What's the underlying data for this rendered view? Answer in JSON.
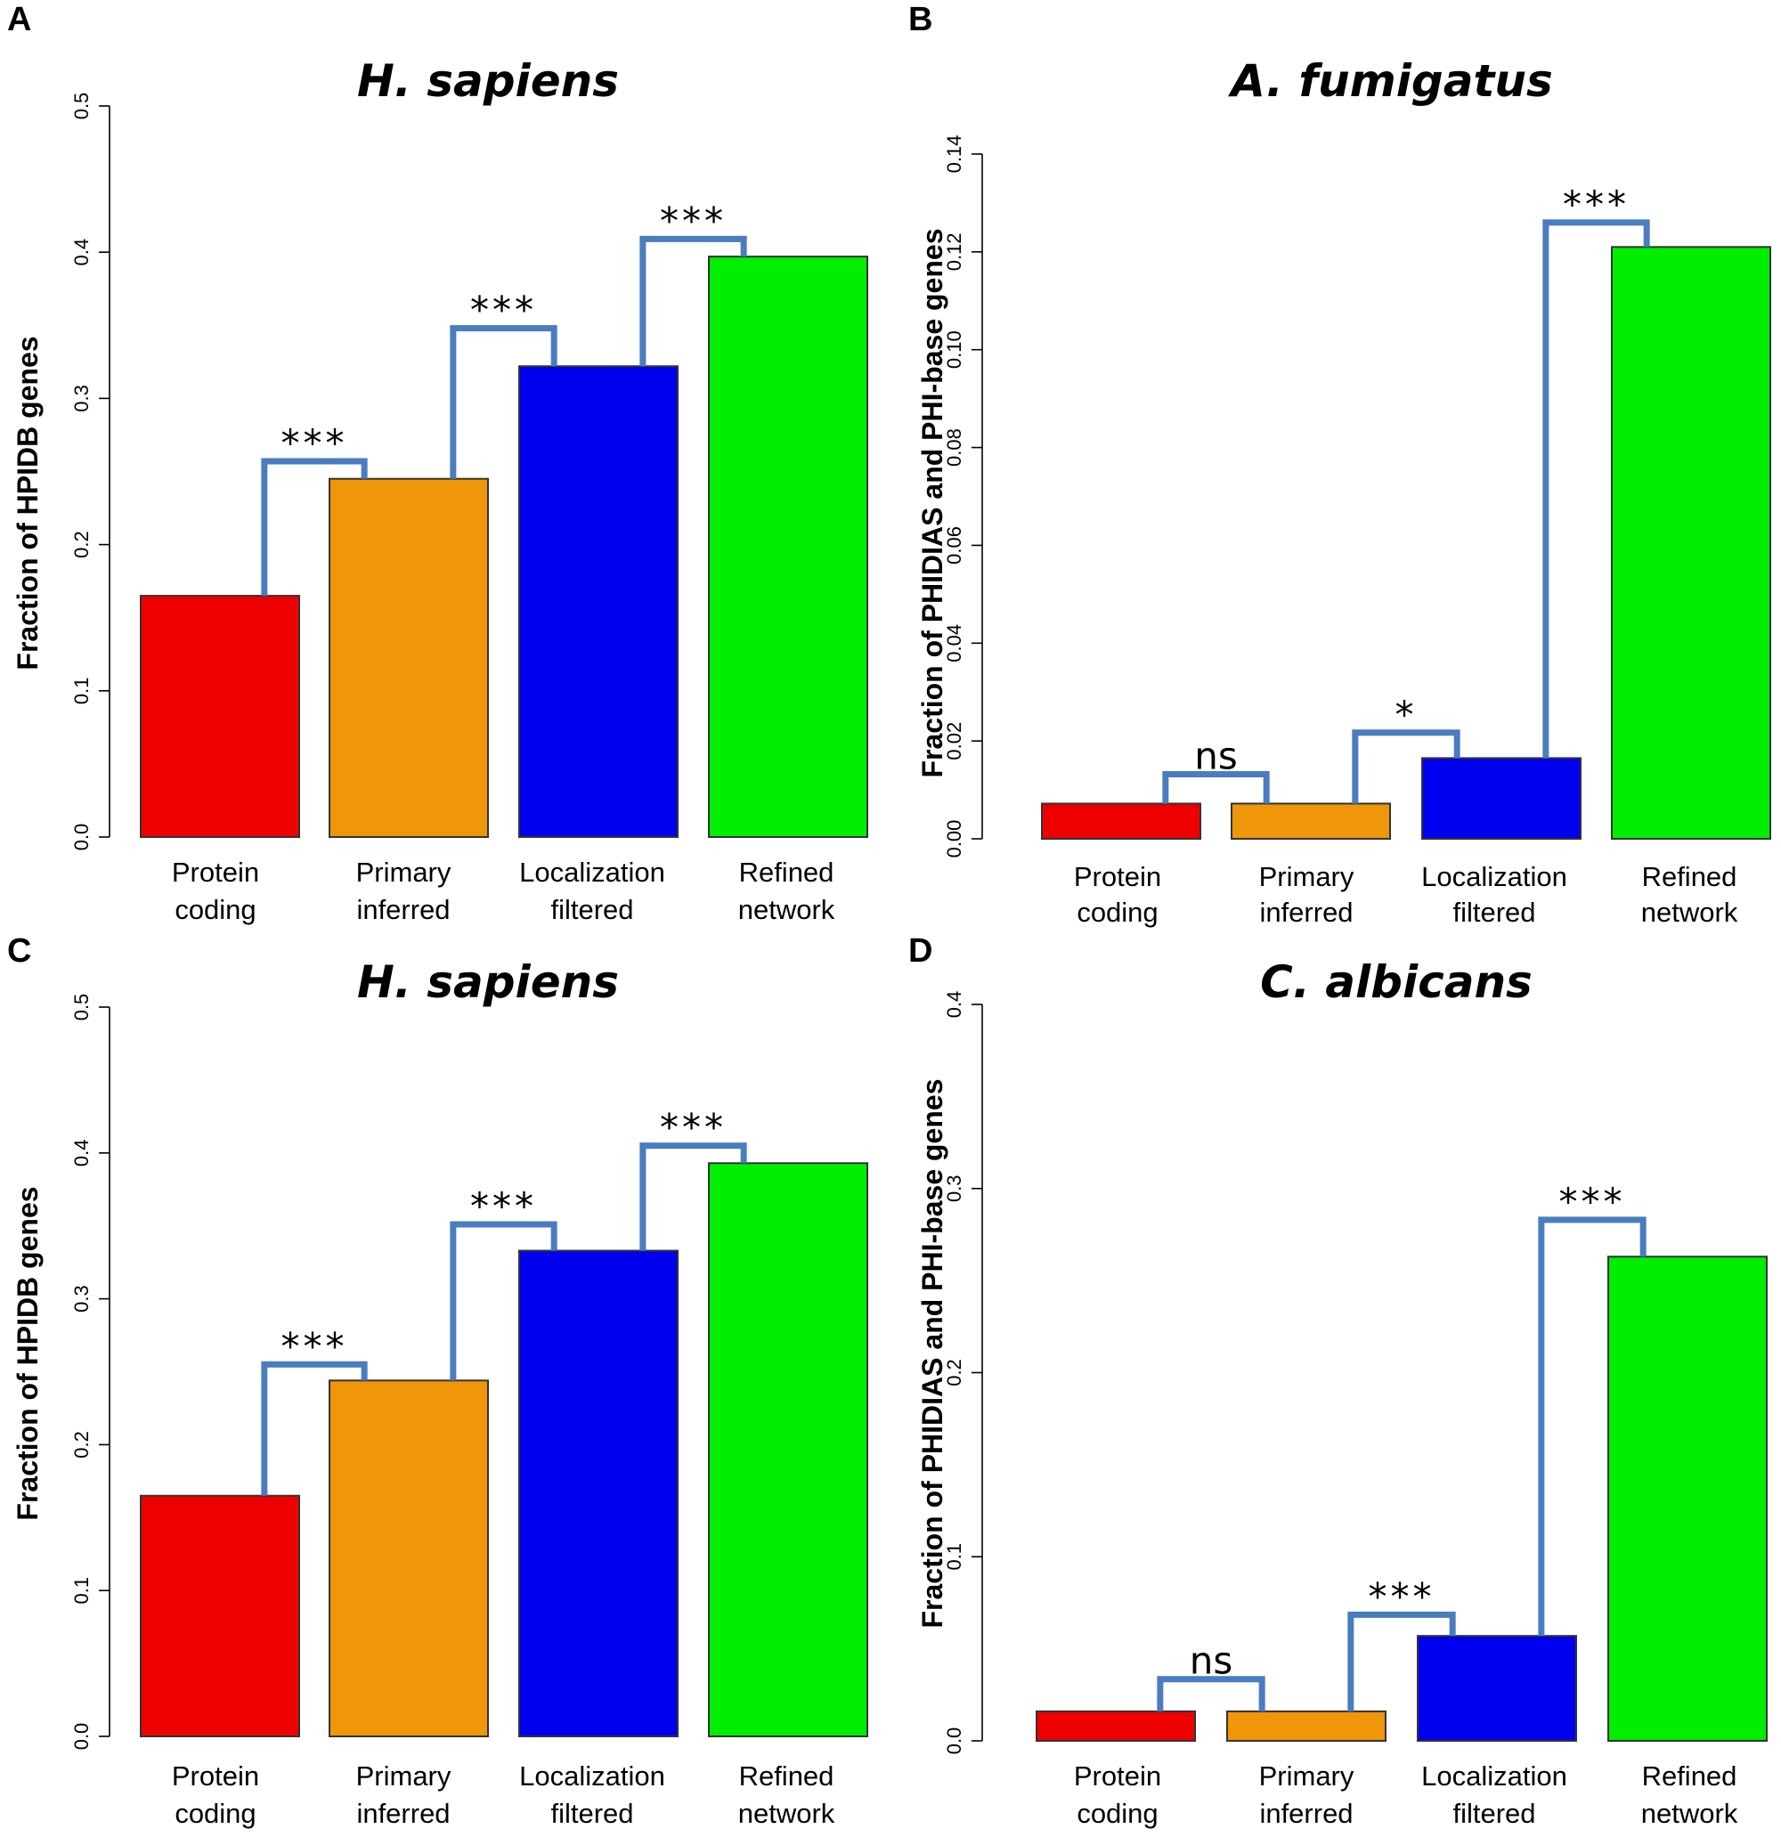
{
  "panels": [
    {
      "letter": "A",
      "title": "H. sapiens"
    },
    {
      "letter": "B",
      "title": "A. fumigatus"
    },
    {
      "letter": "C",
      "title": "H. sapiens"
    },
    {
      "letter": "D",
      "title": "C. albicans"
    }
  ],
  "chart_data": [
    {
      "panel": "A",
      "type": "bar",
      "title": "H. sapiens",
      "xlabel": "",
      "ylabel": "Fraction of HPIDB genes",
      "categories": [
        [
          "Protein",
          "coding"
        ],
        [
          "Primary",
          "inferred"
        ],
        [
          "Localization",
          "filtered"
        ],
        [
          "Refined",
          "network"
        ]
      ],
      "values": [
        0.165,
        0.245,
        0.322,
        0.397
      ],
      "colors": [
        "#ee0000",
        "#f0960a",
        "#0000ee",
        "#00ee00"
      ],
      "ylim": [
        0,
        0.5
      ],
      "yticks": [
        0.0,
        0.1,
        0.2,
        0.3,
        0.4,
        0.5
      ],
      "ytick_labels": [
        "0.0",
        "0.1",
        "0.2",
        "0.3",
        "0.4",
        "0.5"
      ],
      "grid": false,
      "comparisons": [
        {
          "from": 0,
          "to": 1,
          "label": "***",
          "bracket_y": 0.257
        },
        {
          "from": 1,
          "to": 2,
          "label": "***",
          "bracket_y": 0.348
        },
        {
          "from": 2,
          "to": 3,
          "label": "***",
          "bracket_y": 0.409
        }
      ]
    },
    {
      "panel": "B",
      "type": "bar",
      "title": "A. fumigatus",
      "xlabel": "",
      "ylabel": "Fraction of PHIDIAS and PHI-base genes",
      "categories": [
        [
          "Protein",
          "coding"
        ],
        [
          "Primary",
          "inferred"
        ],
        [
          "Localization",
          "filtered"
        ],
        [
          "Refined",
          "network"
        ]
      ],
      "values": [
        0.0072,
        0.0072,
        0.0165,
        0.121
      ],
      "colors": [
        "#ee0000",
        "#f0960a",
        "#0000ee",
        "#00ee00"
      ],
      "ylim": [
        0,
        0.14
      ],
      "yticks": [
        0.0,
        0.02,
        0.04,
        0.06,
        0.08,
        0.1,
        0.12,
        0.14
      ],
      "ytick_labels": [
        "0.00",
        "0.02",
        "0.04",
        "0.06",
        "0.08",
        "0.10",
        "0.12",
        "0.14"
      ],
      "grid": false,
      "comparisons": [
        {
          "from": 0,
          "to": 1,
          "label": "ns",
          "bracket_y": 0.0132
        },
        {
          "from": 1,
          "to": 2,
          "label": "*",
          "bracket_y": 0.0217
        },
        {
          "from": 2,
          "to": 3,
          "label": "***",
          "bracket_y": 0.126
        }
      ]
    },
    {
      "panel": "C",
      "type": "bar",
      "title": "H. sapiens",
      "xlabel": "",
      "ylabel": "Fraction of HPIDB genes",
      "categories": [
        [
          "Protein",
          "coding"
        ],
        [
          "Primary",
          "inferred"
        ],
        [
          "Localization",
          "filtered"
        ],
        [
          "Refined",
          "network"
        ]
      ],
      "values": [
        0.165,
        0.244,
        0.333,
        0.393
      ],
      "colors": [
        "#ee0000",
        "#f0960a",
        "#0000ee",
        "#00ee00"
      ],
      "ylim": [
        0,
        0.5
      ],
      "yticks": [
        0.0,
        0.1,
        0.2,
        0.3,
        0.4,
        0.5
      ],
      "ytick_labels": [
        "0.0",
        "0.1",
        "0.2",
        "0.3",
        "0.4",
        "0.5"
      ],
      "grid": false,
      "comparisons": [
        {
          "from": 0,
          "to": 1,
          "label": "***",
          "bracket_y": 0.255
        },
        {
          "from": 1,
          "to": 2,
          "label": "***",
          "bracket_y": 0.351
        },
        {
          "from": 2,
          "to": 3,
          "label": "***",
          "bracket_y": 0.405
        }
      ]
    },
    {
      "panel": "D",
      "type": "bar",
      "title": "C. albicans",
      "xlabel": "",
      "ylabel": "Fraction of PHIDIAS and PHI-base genes",
      "categories": [
        [
          "Protein",
          "coding"
        ],
        [
          "Primary",
          "inferred"
        ],
        [
          "Localization",
          "filtered"
        ],
        [
          "Refined",
          "network"
        ]
      ],
      "values": [
        0.016,
        0.016,
        0.057,
        0.263
      ],
      "colors": [
        "#ee0000",
        "#f0960a",
        "#0000ee",
        "#00ee00"
      ],
      "ylim": [
        0,
        0.4
      ],
      "yticks": [
        0.0,
        0.1,
        0.2,
        0.3,
        0.4
      ],
      "ytick_labels": [
        "0.0",
        "0.1",
        "0.2",
        "0.3",
        "0.4"
      ],
      "grid": false,
      "comparisons": [
        {
          "from": 0,
          "to": 1,
          "label": "ns",
          "bracket_y": 0.0335
        },
        {
          "from": 1,
          "to": 2,
          "label": "***",
          "bracket_y": 0.0685
        },
        {
          "from": 2,
          "to": 3,
          "label": "***",
          "bracket_y": 0.283
        }
      ]
    }
  ]
}
